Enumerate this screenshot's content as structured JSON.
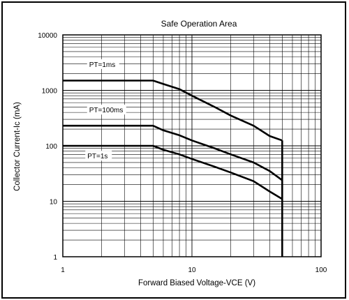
{
  "chart_data": {
    "type": "line",
    "title": "Safe Operation Area",
    "xlabel": "Forward Biased Voltage-VCE (V)",
    "ylabel": "Collector Current-Ic (mA)",
    "x_scale": "log",
    "y_scale": "log",
    "xlim": [
      1,
      100
    ],
    "ylim": [
      1,
      10000
    ],
    "x_ticks": [
      "1",
      "10",
      "100"
    ],
    "y_ticks": [
      "1",
      "10",
      "100",
      "1000",
      "10000"
    ],
    "grid": true,
    "series": [
      {
        "name": "PT=1ms",
        "x": [
          1,
          5,
          6,
          8,
          10,
          15,
          20,
          30,
          40,
          50
        ],
        "y": [
          1500,
          1500,
          1300,
          1050,
          800,
          500,
          350,
          230,
          150,
          125
        ]
      },
      {
        "name": "PT=100ms",
        "x": [
          1,
          5,
          6,
          8,
          10,
          15,
          20,
          30,
          40,
          50
        ],
        "y": [
          230,
          230,
          190,
          155,
          125,
          90,
          70,
          50,
          35,
          24
        ]
      },
      {
        "name": "PT=1s",
        "x": [
          1,
          5,
          6,
          8,
          10,
          15,
          20,
          30,
          40,
          50
        ],
        "y": [
          100,
          100,
          85,
          70,
          58,
          42,
          33,
          23,
          15,
          11
        ]
      }
    ],
    "vertical_limit": {
      "x": 50,
      "y_range": [
        1,
        125
      ]
    },
    "line_color": "#000000"
  }
}
